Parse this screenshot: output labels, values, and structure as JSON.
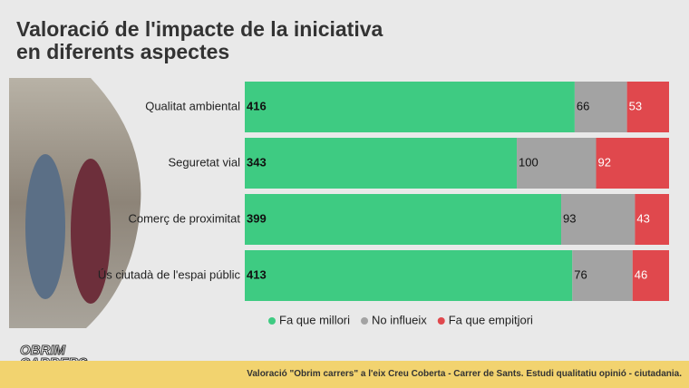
{
  "chart_data": {
    "type": "stacked-bar",
    "orientation": "horizontal",
    "title": "Valoració de l'impacte de la iniciativa en diferents aspectes",
    "categories": [
      "Qualitat ambiental",
      "Seguretat vial",
      "Comerç de proximitat",
      "Ús ciutadà de l'espai públic"
    ],
    "series": [
      {
        "name": "Fa que millori",
        "color": "#3ecb82",
        "label_color": "#111111",
        "values": [
          416,
          343,
          399,
          413
        ]
      },
      {
        "name": "No influeix",
        "color": "#a3a3a3",
        "label_color": "#111111",
        "values": [
          66,
          100,
          93,
          76
        ]
      },
      {
        "name": "Fa que empitjori",
        "color": "#e0484d",
        "label_color": "#ffffff",
        "values": [
          53,
          92,
          43,
          46
        ]
      }
    ],
    "legend": "bottom"
  },
  "footer": "Valoració \"Obrim carrers\" a l'eix Creu Coberta - Carrer de Sants. Estudi qualitatiu opinió - ciutadania.",
  "logo": "OBRIM CARRERS"
}
